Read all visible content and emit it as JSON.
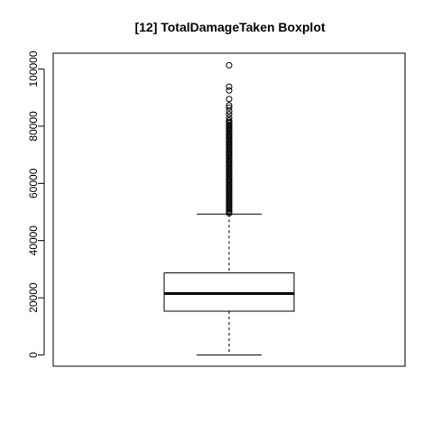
{
  "chart_data": {
    "type": "boxplot",
    "title": "[12] TotalDamageTaken Boxplot",
    "xlabel": "",
    "ylabel": "",
    "ylim": [
      -4000,
      104000
    ],
    "y_ticks": [
      0,
      20000,
      40000,
      60000,
      80000,
      100000
    ],
    "y_tick_labels": [
      "0",
      "20000",
      "40000",
      "60000",
      "80000",
      "100000"
    ],
    "grid": false,
    "box": {
      "whisker_low": 0,
      "q1": 15300,
      "median": 21500,
      "q3": 28700,
      "whisker_high": 49300
    },
    "outliers": [
      49500,
      50000,
      50500,
      51000,
      51500,
      52000,
      52500,
      53000,
      53500,
      54000,
      54500,
      55000,
      55500,
      56000,
      56500,
      57000,
      57500,
      58000,
      58500,
      59000,
      59500,
      60000,
      60500,
      61000,
      61500,
      62000,
      62500,
      63000,
      63500,
      64000,
      64500,
      65000,
      65500,
      66000,
      66500,
      67000,
      67500,
      68000,
      68500,
      69000,
      69500,
      70000,
      70500,
      71000,
      71500,
      72000,
      72500,
      73000,
      73500,
      74000,
      74500,
      75000,
      75500,
      76000,
      76500,
      77000,
      77500,
      78000,
      78500,
      79000,
      79500,
      80000,
      80500,
      81000,
      81500,
      82000,
      83000,
      84200,
      85300,
      86500,
      87300,
      89500,
      92500,
      93800,
      101300
    ],
    "colors": {
      "stroke": "#000000",
      "background": "#ffffff"
    }
  }
}
